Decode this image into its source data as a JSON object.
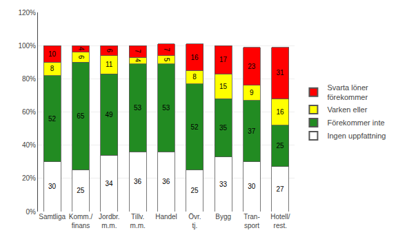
{
  "chart_data": {
    "type": "bar",
    "stacked": true,
    "categories": [
      "Samtliga",
      "Komm./\nfinans",
      "Jordbr.\nm.m.",
      "Tillv.\nm.m.",
      "Handel",
      "Övr.\ntj.",
      "Bygg",
      "Tran-\nsport",
      "Hotell/\nrest."
    ],
    "series": [
      {
        "name": "Ingen uppfattning",
        "color": "#ffffff",
        "values": [
          30,
          25,
          34,
          36,
          36,
          25,
          33,
          30,
          27
        ]
      },
      {
        "name": "Förekommer inte",
        "color": "#228B22",
        "values": [
          52,
          65,
          49,
          53,
          53,
          52,
          35,
          37,
          25
        ]
      },
      {
        "name": "Varken eller",
        "color": "#FFFF00",
        "values": [
          8,
          6,
          11,
          4,
          5,
          8,
          15,
          9,
          16
        ]
      },
      {
        "name": "Svarta löner\nförekommer",
        "color": "#FF0000",
        "values": [
          10,
          4,
          6,
          7,
          7,
          16,
          17,
          23,
          31
        ]
      }
    ],
    "ylim": [
      0,
      120
    ],
    "yticks": [
      {
        "value": 0,
        "label": "0%"
      },
      {
        "value": 20,
        "label": "20%"
      },
      {
        "value": 40,
        "label": "40%"
      },
      {
        "value": 60,
        "label": "60%"
      },
      {
        "value": 80,
        "label": "80%"
      },
      {
        "value": 100,
        "label": "100%"
      },
      {
        "value": 120,
        "label": "120%"
      }
    ],
    "grid": true,
    "legend": "right",
    "data_labels": true
  }
}
